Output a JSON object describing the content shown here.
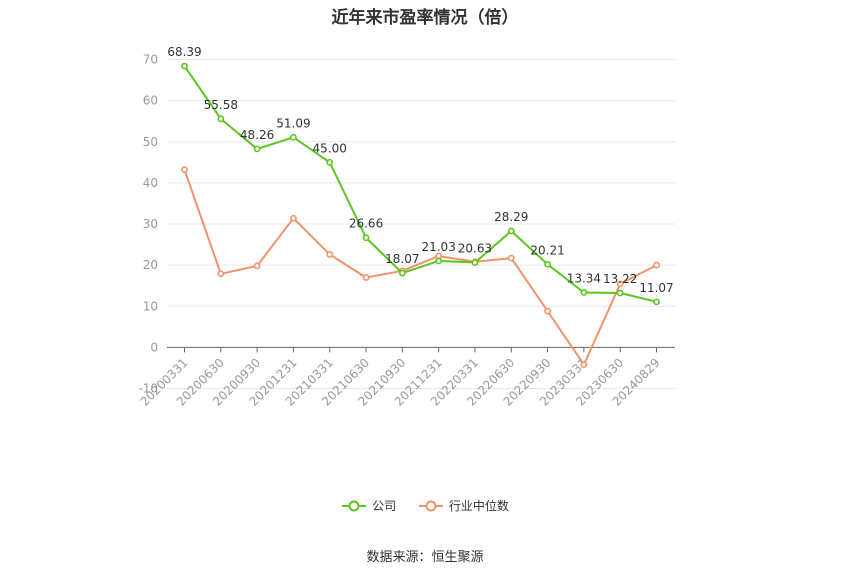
{
  "title": "近年来市盈率情况（倍）",
  "source": "数据来源：恒生聚源",
  "colors": {
    "company": "#5cc51f",
    "industry": "#f0936b",
    "grid": "#e6e6f0",
    "axis": "#666666",
    "tick_text": "#999999"
  },
  "chart_data": {
    "type": "line",
    "title": "近年来市盈率情况（倍）",
    "categories": [
      "20200331",
      "20200630",
      "20200930",
      "20201231",
      "20210331",
      "20210630",
      "20210930",
      "20211231",
      "20220331",
      "20220630",
      "20220930",
      "20230331",
      "20230630",
      "20240829"
    ],
    "series": [
      {
        "name": "公司",
        "values": [
          68.39,
          55.58,
          48.26,
          51.09,
          45.0,
          26.66,
          18.07,
          21.03,
          20.63,
          28.29,
          20.21,
          13.34,
          13.22,
          11.07
        ],
        "labels": [
          "68.39",
          "55.58",
          "48.26",
          "51.09",
          "45.00",
          "26.66",
          "18.07",
          "21.03",
          "20.63",
          "28.29",
          "20.21",
          "13.34",
          "13.22",
          "11.07"
        ]
      },
      {
        "name": "行业中位数",
        "values": [
          43.2,
          17.9,
          19.8,
          31.4,
          22.6,
          17.0,
          18.6,
          22.2,
          20.8,
          21.7,
          8.8,
          -4.2,
          15.4,
          20.0
        ]
      }
    ],
    "yticks": [
      70,
      60,
      50,
      40,
      30,
      20,
      10,
      0,
      -10
    ],
    "ylim": [
      -10,
      70
    ],
    "grid": true,
    "legend_position": "bottom"
  }
}
